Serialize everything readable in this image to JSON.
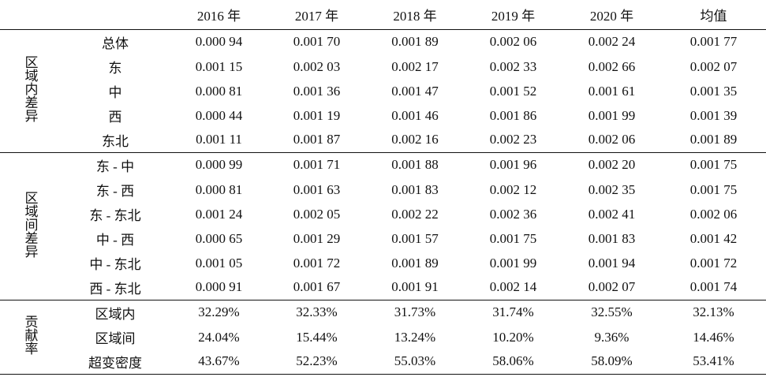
{
  "header": {
    "corner": "",
    "columns": [
      "2016 年",
      "2017 年",
      "2018 年",
      "2019 年",
      "2020 年",
      "均值"
    ]
  },
  "groups": [
    {
      "label": "区域内差异",
      "rows": [
        {
          "sub": "总体",
          "values": [
            "0.000 94",
            "0.001 70",
            "0.001 89",
            "0.002 06",
            "0.002 24",
            "0.001 77"
          ]
        },
        {
          "sub": "东",
          "values": [
            "0.001 15",
            "0.002 03",
            "0.002 17",
            "0.002 33",
            "0.002 66",
            "0.002 07"
          ]
        },
        {
          "sub": "中",
          "values": [
            "0.000 81",
            "0.001 36",
            "0.001 47",
            "0.001 52",
            "0.001 61",
            "0.001 35"
          ]
        },
        {
          "sub": "西",
          "values": [
            "0.000 44",
            "0.001 19",
            "0.001 46",
            "0.001 86",
            "0.001 99",
            "0.001 39"
          ]
        },
        {
          "sub": "东北",
          "values": [
            "0.001 11",
            "0.001 87",
            "0.002 16",
            "0.002 23",
            "0.002 06",
            "0.001 89"
          ]
        }
      ]
    },
    {
      "label": "区域间差异",
      "rows": [
        {
          "sub": "东 - 中",
          "values": [
            "0.000 99",
            "0.001 71",
            "0.001 88",
            "0.001 96",
            "0.002 20",
            "0.001 75"
          ]
        },
        {
          "sub": "东 - 西",
          "values": [
            "0.000 81",
            "0.001 63",
            "0.001 83",
            "0.002 12",
            "0.002 35",
            "0.001 75"
          ]
        },
        {
          "sub": "东 - 东北",
          "values": [
            "0.001 24",
            "0.002 05",
            "0.002 22",
            "0.002 36",
            "0.002 41",
            "0.002 06"
          ]
        },
        {
          "sub": "中 - 西",
          "values": [
            "0.000 65",
            "0.001 29",
            "0.001 57",
            "0.001 75",
            "0.001 83",
            "0.001 42"
          ]
        },
        {
          "sub": "中 - 东北",
          "values": [
            "0.001 05",
            "0.001 72",
            "0.001 89",
            "0.001 99",
            "0.001 94",
            "0.001 72"
          ]
        },
        {
          "sub": "西 - 东北",
          "values": [
            "0.000 91",
            "0.001 67",
            "0.001 91",
            "0.002 14",
            "0.002 07",
            "0.001 74"
          ]
        }
      ]
    },
    {
      "label": "贡献率",
      "rows": [
        {
          "sub": "区域内",
          "values": [
            "32.29%",
            "32.33%",
            "31.73%",
            "31.74%",
            "32.55%",
            "32.13%"
          ]
        },
        {
          "sub": "区域间",
          "values": [
            "24.04%",
            "15.44%",
            "13.24%",
            "10.20%",
            "9.36%",
            "14.46%"
          ]
        },
        {
          "sub": "超变密度",
          "values": [
            "43.67%",
            "52.23%",
            "55.03%",
            "58.06%",
            "58.09%",
            "53.41%"
          ]
        }
      ]
    }
  ]
}
